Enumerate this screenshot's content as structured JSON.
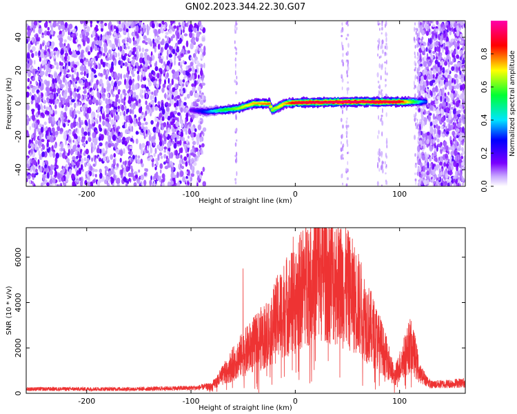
{
  "title": "GN02.2023.344.22.30.G07",
  "colors": {
    "snr_line": "#ee3333",
    "colorbar": [
      "#ffffff",
      "#c8a8ff",
      "#7a00ff",
      "#0000ff",
      "#00e5ff",
      "#00ff33",
      "#ffff00",
      "#ff0000",
      "#ff00aa"
    ]
  },
  "chart_data": [
    {
      "type": "heatmap",
      "name": "spectrogram",
      "xlabel": "Height of straight line (km)",
      "ylabel": "Frequency (Hz)",
      "xlim": [
        -258,
        163
      ],
      "ylim": [
        -50,
        50
      ],
      "xticks": [
        -200,
        -100,
        0,
        100
      ],
      "yticks": [
        -40,
        -20,
        0,
        20,
        40
      ],
      "colorbar": {
        "label": "Normalized spectral amplitude",
        "range": [
          0,
          1
        ],
        "ticks": [
          "0.0",
          "0.2",
          "0.4",
          "0.6",
          "0.8"
        ]
      },
      "noise_regions": [
        [
          -258,
          -87
        ],
        [
          118,
          163
        ]
      ],
      "signal_track": [
        {
          "x": -100,
          "y": -4,
          "amp": 0.15
        },
        {
          "x": -85,
          "y": -5,
          "amp": 0.3
        },
        {
          "x": -70,
          "y": -4,
          "amp": 0.5
        },
        {
          "x": -55,
          "y": -3,
          "amp": 0.6
        },
        {
          "x": -40,
          "y": 0,
          "amp": 0.7
        },
        {
          "x": -25,
          "y": 0,
          "amp": 0.75
        },
        {
          "x": -22,
          "y": -4,
          "amp": 0.6
        },
        {
          "x": -10,
          "y": 0,
          "amp": 0.7
        },
        {
          "x": 0,
          "y": 0.5,
          "amp": 0.85
        },
        {
          "x": 50,
          "y": 1,
          "amp": 0.9
        },
        {
          "x": 100,
          "y": 1,
          "amp": 0.85
        },
        {
          "x": 125,
          "y": 1,
          "amp": 0.3
        }
      ],
      "vertical_streaks_x": [
        -57,
        45,
        50,
        80,
        83,
        87,
        115,
        118
      ]
    },
    {
      "type": "line",
      "name": "snr",
      "xlabel": "Height of straight line (km)",
      "ylabel": "SNR (10 * v/v)",
      "xlim": [
        -258,
        163
      ],
      "ylim": [
        0,
        7300
      ],
      "xticks": [
        -200,
        -100,
        0,
        100
      ],
      "yticks": [
        0,
        2000,
        4000,
        6000
      ],
      "envelope": {
        "x": [
          -258,
          -150,
          -95,
          -80,
          -70,
          -55,
          -40,
          -25,
          -10,
          0,
          10,
          20,
          30,
          40,
          50,
          60,
          70,
          80,
          90,
          95,
          100,
          110,
          115,
          120,
          130,
          150,
          163
        ],
        "y": [
          200,
          200,
          250,
          350,
          900,
          1800,
          2500,
          3200,
          4500,
          4800,
          5800,
          6400,
          6300,
          5800,
          5400,
          4700,
          3600,
          2700,
          1600,
          800,
          1400,
          2500,
          1900,
          900,
          400,
          450,
          500
        ]
      },
      "spikes": [
        {
          "x": -50,
          "y": 5500
        },
        {
          "x": -2,
          "y": 6900
        },
        {
          "x": 12,
          "y": 7200
        },
        {
          "x": 28,
          "y": 7000
        },
        {
          "x": 43,
          "y": 6500
        },
        {
          "x": -82,
          "y": 50
        },
        {
          "x": -35,
          "y": 30
        },
        {
          "x": 95,
          "y": 30
        }
      ]
    }
  ]
}
